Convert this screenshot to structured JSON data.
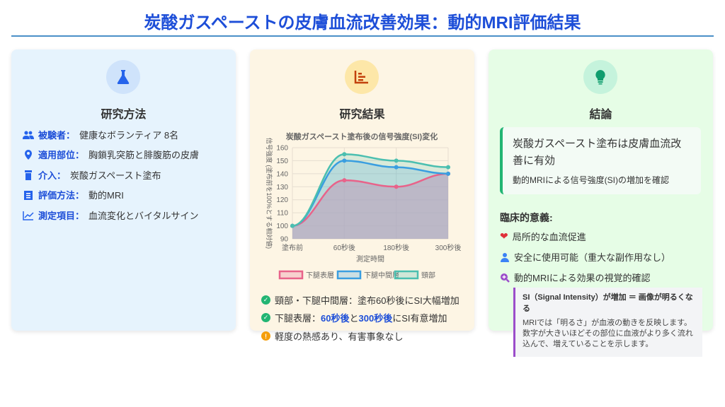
{
  "title": "炭酸ガスペーストの皮膚血流改善効果：動的MRI評価結果",
  "methods": {
    "title": "研究方法",
    "icon": "flask-icon",
    "items": [
      {
        "icon": "users-icon",
        "label": "被験者：",
        "value": "健康なボランティア 8名"
      },
      {
        "icon": "map-pin-icon",
        "label": "適用部位：",
        "value": "胸鎖乳突筋と腓腹筋の皮膚"
      },
      {
        "icon": "prescription-bottle-icon",
        "label": "介入：",
        "value": "炭酸ガスペースト塗布"
      },
      {
        "icon": "clipboard-list-icon",
        "label": "評価方法：",
        "value": "動的MRI"
      },
      {
        "icon": "chart-line-icon",
        "label": "測定項目：",
        "value": "血流変化とバイタルサイン"
      }
    ]
  },
  "results": {
    "title": "研究結果",
    "icon": "bar-chart-icon",
    "bullets": [
      {
        "icon": "check-circle-icon",
        "text": "頸部・下腿中間層：塗布60秒後にSI大幅増加"
      },
      {
        "icon": "check-circle-icon",
        "pre": "下腿表層：",
        "h1": "60秒後",
        "mid": "と",
        "h2": "300秒後",
        "post": "にSI有意増加"
      },
      {
        "icon": "warning-circle-icon",
        "text": "軽度の熱感あり、有害事象なし"
      }
    ]
  },
  "chart_data": {
    "type": "area",
    "title": "炭酸ガスペースト塗布後の信号強度(SI)変化",
    "xlabel": "測定時間",
    "ylabel": "信号強度 (塗布前を100%とする相対値)",
    "categories": [
      "塗布前",
      "60秒後",
      "180秒後",
      "300秒後"
    ],
    "ylim": [
      90,
      160
    ],
    "yticks": [
      90,
      100,
      110,
      120,
      130,
      140,
      150,
      160
    ],
    "grid": true,
    "legend": "bottom",
    "series": [
      {
        "name": "下腿表層",
        "values": [
          100,
          135,
          130,
          140
        ],
        "color": "#e8638a"
      },
      {
        "name": "下腿中間層",
        "values": [
          100,
          150,
          145,
          140
        ],
        "color": "#3a9ee0"
      },
      {
        "name": "頸部",
        "values": [
          100,
          155,
          150,
          145
        ],
        "color": "#4bbfb0"
      }
    ]
  },
  "conclusion": {
    "title": "結論",
    "icon": "lightbulb-icon",
    "main": "炭酸ガスペースト塗布は皮膚血流改善に有効",
    "sub": "動的MRIによる信号強度(SI)の増加を確認",
    "significance_title": "臨床的意義:",
    "items": [
      {
        "icon": "heart-icon",
        "text": "局所的な血流促進"
      },
      {
        "icon": "user-shield-icon",
        "text": "安全に使用可能（重大な副作用なし）"
      },
      {
        "icon": "search-plus-icon",
        "text": "動的MRIによる効果の視覚的確認"
      }
    ],
    "info_title": "SI（Signal Intensity）が増加 ＝ 画像が明るくなる",
    "info_text": "MRIでは「明るさ」が血液の動きを反映します。数字が大きいほどその部位に血液がより多く流れ込んで、増えていることを示します。"
  }
}
